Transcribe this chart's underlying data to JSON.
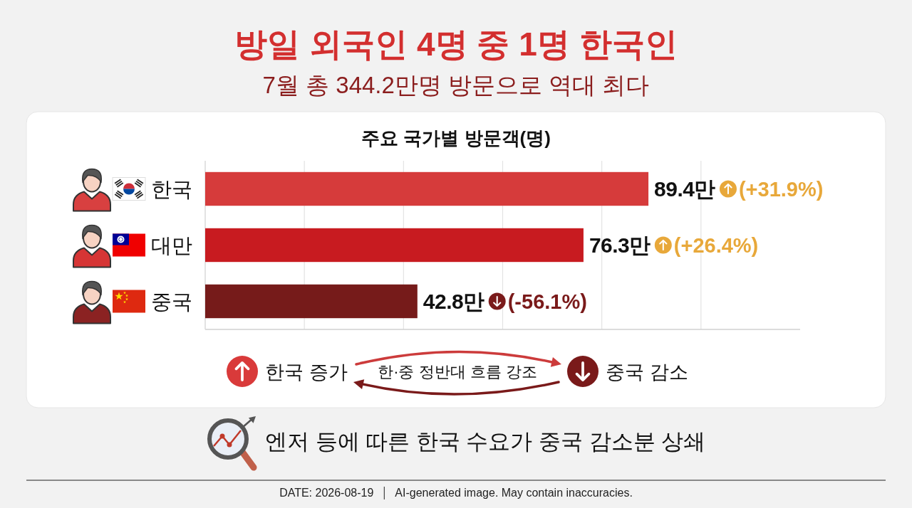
{
  "chart_data": {
    "type": "bar",
    "orientation": "horizontal",
    "title": "방일 외국인 4명 중 1명 한국인",
    "subtitle": "7월 총 344.2만명 방문으로 역대 최다",
    "categories": [
      "한국",
      "대만",
      "중국"
    ],
    "values": [
      89.4,
      76.3,
      42.8
    ],
    "colors": [
      "#d63b3b",
      "#c81b20",
      "#761b1a"
    ],
    "value_labels": [
      "89.4만",
      "76.3만",
      "42.8만"
    ],
    "xlim": [
      0,
      120
    ],
    "xticks": [
      {
        "value": 0,
        "label": null
      },
      {
        "value": 20,
        "label": null
      },
      {
        "value": 40,
        "label": null
      },
      {
        "value": 60,
        "label": null
      },
      {
        "value": 80,
        "label": null
      },
      {
        "value": 100,
        "label": null
      }
    ],
    "grid": "x",
    "tick_labels": "y",
    "annotations": [
      "주요 국가별 방문객(명)",
      "(+31.9%)",
      "(+26.4%)",
      "(-56.1%)",
      "한국 증가",
      "한·중 정반대 흐름 강조",
      "중국 감소",
      "엔저 등에 따른 한국 수요가 중국 감소분 상쇄",
      "DATE: 2026-08-19",
      "AI-generated image. May contain inaccuracies."
    ]
  }
}
